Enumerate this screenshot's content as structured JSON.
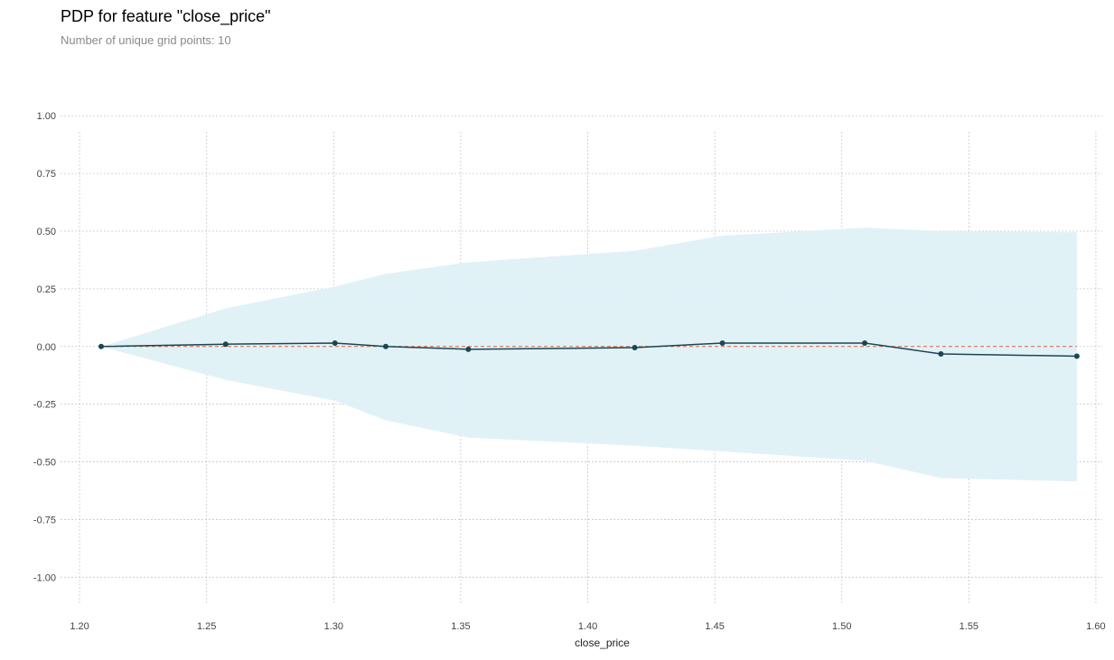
{
  "chart_data": {
    "type": "line",
    "title": "PDP for feature \"close_price\"",
    "subtitle": "Number of unique grid points: 10",
    "xlabel": "close_price",
    "ylabel": "",
    "xlim": [
      1.1925,
      1.6025
    ],
    "ylim": [
      -1.12,
      1.04
    ],
    "xticks": [
      "1.20",
      "1.25",
      "1.30",
      "1.35",
      "1.40",
      "1.45",
      "1.50",
      "1.55",
      "1.60"
    ],
    "yticks": [
      "1.00",
      "0.75",
      "0.50",
      "0.25",
      "0.00",
      "-0.25",
      "-0.50",
      "-0.75",
      "-1.00"
    ],
    "grid": true,
    "reference_line": 0,
    "series": [
      {
        "x": [
          1.2085,
          1.2575,
          1.3005,
          1.3205,
          1.353,
          1.4185,
          1.453,
          1.509,
          1.539,
          1.5925
        ],
        "y": [
          0.0,
          0.01,
          0.015,
          0.0,
          -0.012,
          -0.005,
          0.015,
          0.015,
          -0.032,
          -0.042
        ],
        "upper": [
          0.0,
          0.165,
          0.26,
          0.315,
          0.365,
          0.415,
          0.48,
          0.515,
          0.5,
          0.495
        ],
        "lower": [
          0.0,
          -0.145,
          -0.235,
          -0.32,
          -0.395,
          -0.43,
          -0.455,
          -0.495,
          -0.57,
          -0.585
        ]
      }
    ],
    "colors": {
      "line": "#1a4653",
      "band": "#dff1f7",
      "reference": "#e0603a",
      "grid": "#c8c8c8"
    }
  }
}
